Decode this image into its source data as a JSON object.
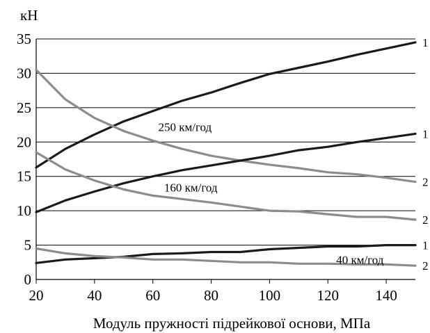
{
  "chart_data": {
    "type": "line",
    "ylabel": "кН",
    "xlabel": "Модуль пружності підрейкової основи, МПа",
    "xlim": [
      20,
      150
    ],
    "ylim": [
      0,
      35
    ],
    "x_ticks": [
      20,
      40,
      60,
      80,
      100,
      120,
      140
    ],
    "y_ticks": [
      0,
      5,
      10,
      15,
      20,
      25,
      30,
      35
    ],
    "grid": "horizontal",
    "x": [
      20,
      30,
      40,
      50,
      60,
      70,
      80,
      90,
      100,
      110,
      120,
      130,
      140,
      150
    ],
    "series": [
      {
        "group": "250 км/год",
        "label": "1",
        "color": "#1a1a1a",
        "values": [
          16.3,
          19.0,
          21.1,
          23.0,
          24.5,
          26.0,
          27.2,
          28.6,
          29.9,
          30.8,
          31.7,
          32.7,
          33.6,
          34.5
        ]
      },
      {
        "group": "250 км/год",
        "label": "2",
        "color": "#8c8c8c",
        "values": [
          30.5,
          26.2,
          23.5,
          21.6,
          20.2,
          19.0,
          18.0,
          17.3,
          16.7,
          16.2,
          15.6,
          15.3,
          14.8,
          14.2
        ]
      },
      {
        "group": "160 км/год",
        "label": "1",
        "color": "#1a1a1a",
        "values": [
          9.8,
          11.5,
          12.8,
          14.0,
          15.0,
          15.9,
          16.6,
          17.3,
          18.0,
          18.8,
          19.3,
          20.0,
          20.6,
          21.2
        ]
      },
      {
        "group": "160 км/год",
        "label": "2",
        "color": "#8c8c8c",
        "values": [
          18.5,
          16.0,
          14.4,
          13.1,
          12.2,
          11.7,
          11.2,
          10.6,
          10.0,
          9.9,
          9.5,
          9.1,
          9.1,
          8.7
        ]
      },
      {
        "group": "40 км/год",
        "label": "1",
        "color": "#1a1a1a",
        "values": [
          2.4,
          2.9,
          3.1,
          3.3,
          3.7,
          3.8,
          4.0,
          4.0,
          4.4,
          4.6,
          4.8,
          4.8,
          5.0,
          5.0
        ]
      },
      {
        "group": "40 км/год",
        "label": "2",
        "color": "#8c8c8c",
        "values": [
          4.5,
          3.8,
          3.4,
          3.2,
          2.9,
          2.9,
          2.7,
          2.5,
          2.5,
          2.3,
          2.3,
          2.2,
          2.2,
          2.0
        ]
      }
    ],
    "annotations": [
      {
        "text": "250 км/год",
        "x": 71,
        "y": 22.2
      },
      {
        "text": "160 км/год",
        "x": 73,
        "y": 13.4
      },
      {
        "text": "40 км/год",
        "x": 131,
        "y": 2.9
      }
    ]
  }
}
